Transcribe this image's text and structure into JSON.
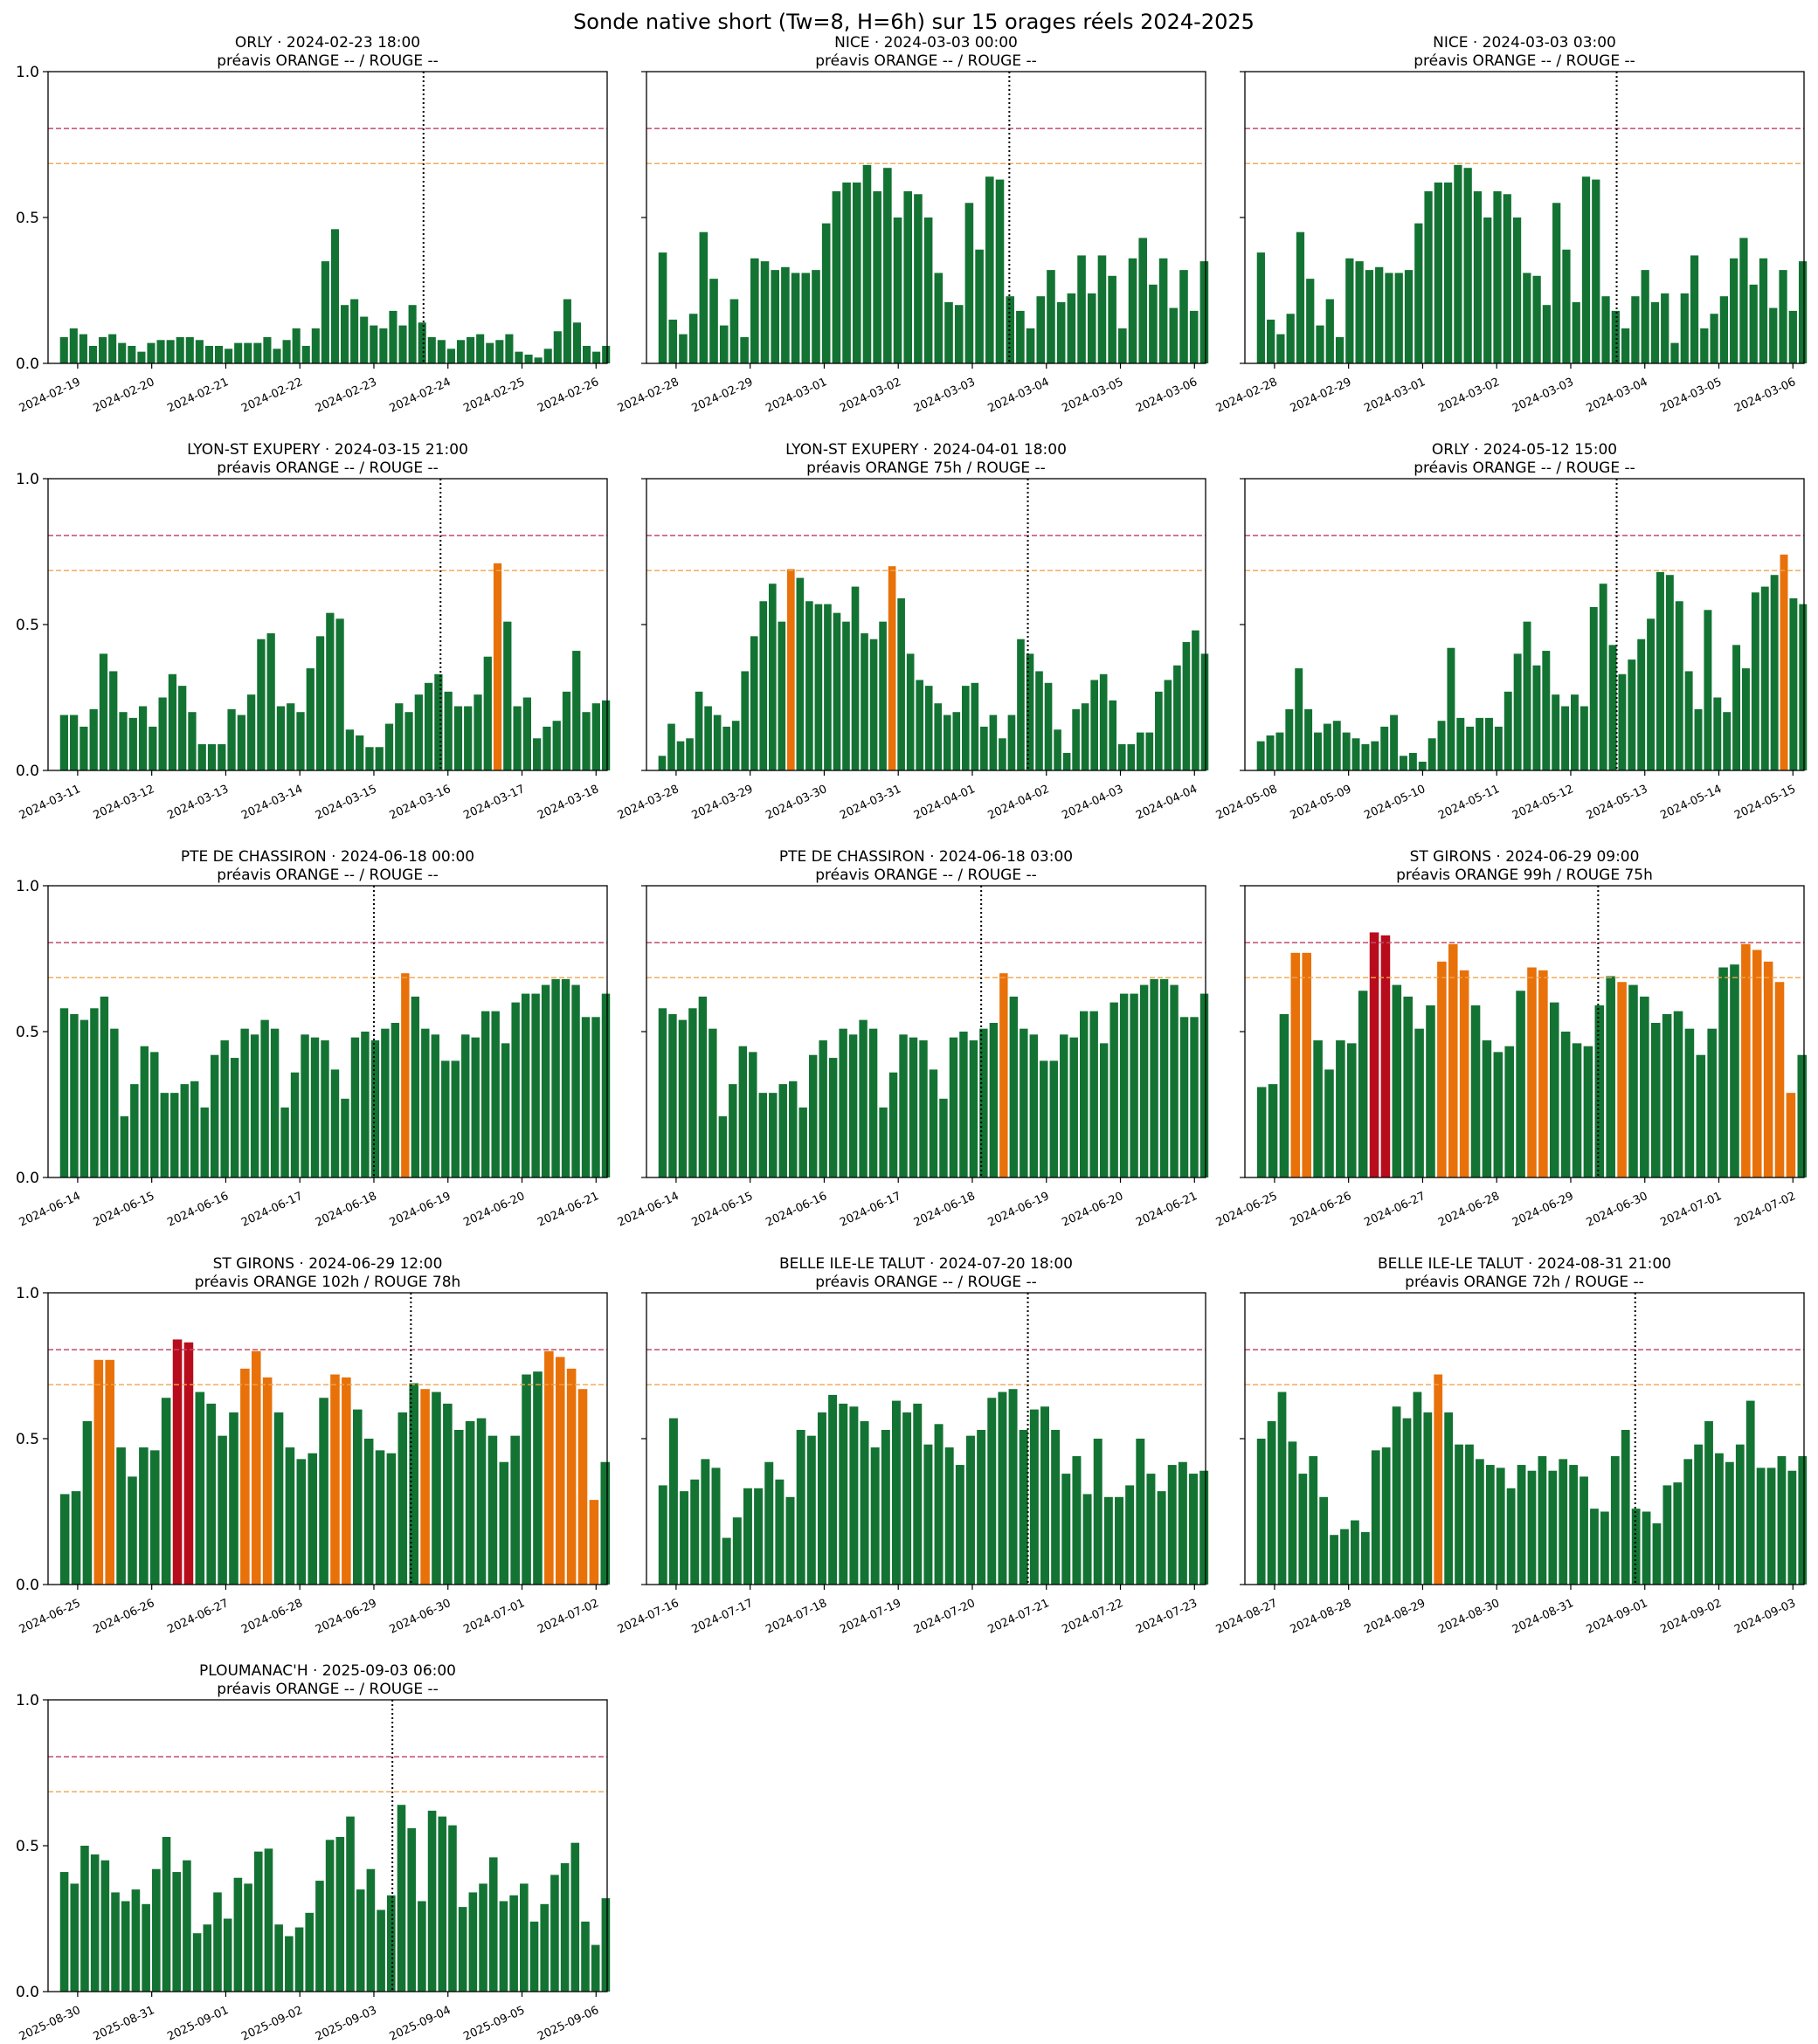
{
  "figure": {
    "title": "Sonde native short (Tw=8, H=6h) sur 15 orages réels 2024-2025",
    "colors": {
      "green": "#137333",
      "orange": "#e8710a",
      "red": "#b80c1c",
      "orange_line": "#f0a44b",
      "red_line": "#c24a6a",
      "frame": "#000000"
    },
    "y_ticks": [
      "0.0",
      "0.5",
      "1.0"
    ],
    "thresholds": {
      "orange": 0.685,
      "red": 0.805
    }
  },
  "chart_data": [
    {
      "type": "bar",
      "station": "ORLY",
      "title": "ORLY · 2024-02-23 18:00",
      "subtitle": "préavis ORANGE -- / ROUGE --",
      "xticks": [
        "2024-02-19",
        "2024-02-20",
        "2024-02-21",
        "2024-02-22",
        "2024-02-23",
        "2024-02-24",
        "2024-02-25",
        "2024-02-26"
      ],
      "ylim": [
        0,
        1
      ],
      "event_x": 4.67,
      "values": [
        0.09,
        0.12,
        0.1,
        0.06,
        0.09,
        0.1,
        0.07,
        0.06,
        0.04,
        0.07,
        0.08,
        0.08,
        0.09,
        0.09,
        0.08,
        0.06,
        0.06,
        0.05,
        0.07,
        0.07,
        0.07,
        0.09,
        0.05,
        0.08,
        0.12,
        0.06,
        0.12,
        0.35,
        0.46,
        0.2,
        0.22,
        0.16,
        0.13,
        0.12,
        0.18,
        0.13,
        0.2,
        0.14,
        0.09,
        0.08,
        0.05,
        0.08,
        0.09,
        0.1,
        0.07,
        0.08,
        0.1,
        0.04,
        0.03,
        0.02,
        0.05,
        0.11,
        0.22,
        0.14,
        0.06,
        0.04,
        0.06
      ],
      "levels": ""
    },
    {
      "type": "bar",
      "station": "NICE",
      "title": "NICE · 2024-03-03 00:00",
      "subtitle": "préavis ORANGE -- / ROUGE --",
      "xticks": [
        "2024-02-28",
        "2024-02-29",
        "2024-03-01",
        "2024-03-02",
        "2024-03-03",
        "2024-03-04",
        "2024-03-05",
        "2024-03-06"
      ],
      "ylim": [
        0,
        1
      ],
      "event_x": 4.5,
      "values": [
        0.38,
        0.15,
        0.1,
        0.17,
        0.45,
        0.29,
        0.13,
        0.22,
        0.09,
        0.36,
        0.35,
        0.32,
        0.33,
        0.31,
        0.31,
        0.32,
        0.48,
        0.59,
        0.62,
        0.62,
        0.68,
        0.59,
        0.67,
        0.5,
        0.59,
        0.58,
        0.5,
        0.31,
        0.21,
        0.2,
        0.55,
        0.39,
        0.64,
        0.63,
        0.23,
        0.18,
        0.12,
        0.23,
        0.32,
        0.21,
        0.24,
        0.37,
        0.24,
        0.37,
        0.3,
        0.12,
        0.36,
        0.43,
        0.27,
        0.36,
        0.19,
        0.32,
        0.18,
        0.35
      ],
      "levels": ""
    },
    {
      "type": "bar",
      "station": "NICE",
      "title": "NICE · 2024-03-03 03:00",
      "subtitle": "préavis ORANGE -- / ROUGE --",
      "xticks": [
        "2024-02-28",
        "2024-02-29",
        "2024-03-01",
        "2024-03-02",
        "2024-03-03",
        "2024-03-04",
        "2024-03-05",
        "2024-03-06"
      ],
      "ylim": [
        0,
        1
      ],
      "event_x": 4.62,
      "values": [
        0.38,
        0.15,
        0.1,
        0.17,
        0.45,
        0.29,
        0.13,
        0.22,
        0.09,
        0.36,
        0.35,
        0.32,
        0.33,
        0.31,
        0.31,
        0.32,
        0.48,
        0.59,
        0.62,
        0.62,
        0.68,
        0.67,
        0.59,
        0.5,
        0.59,
        0.58,
        0.5,
        0.31,
        0.3,
        0.2,
        0.55,
        0.39,
        0.21,
        0.64,
        0.63,
        0.23,
        0.18,
        0.12,
        0.23,
        0.32,
        0.21,
        0.24,
        0.07,
        0.24,
        0.37,
        0.12,
        0.17,
        0.23,
        0.36,
        0.43,
        0.27,
        0.36,
        0.19,
        0.32,
        0.18,
        0.35
      ],
      "levels": ""
    },
    {
      "type": "bar",
      "station": "LYON-ST EXUPERY",
      "title": "LYON-ST EXUPERY · 2024-03-15 21:00",
      "subtitle": "préavis ORANGE -- / ROUGE --",
      "xticks": [
        "2024-03-11",
        "2024-03-12",
        "2024-03-13",
        "2024-03-14",
        "2024-03-15",
        "2024-03-16",
        "2024-03-17",
        "2024-03-18"
      ],
      "ylim": [
        0,
        1
      ],
      "event_x": 4.9,
      "values": [
        0.19,
        0.19,
        0.15,
        0.21,
        0.4,
        0.34,
        0.2,
        0.18,
        0.22,
        0.15,
        0.25,
        0.33,
        0.29,
        0.2,
        0.09,
        0.09,
        0.09,
        0.21,
        0.19,
        0.26,
        0.45,
        0.47,
        0.22,
        0.23,
        0.2,
        0.35,
        0.46,
        0.54,
        0.52,
        0.14,
        0.12,
        0.08,
        0.08,
        0.16,
        0.23,
        0.2,
        0.26,
        0.3,
        0.33,
        0.27,
        0.22,
        0.22,
        0.26,
        0.39,
        0.71,
        0.51,
        0.22,
        0.25,
        0.11,
        0.15,
        0.17,
        0.27,
        0.41,
        0.2,
        0.23,
        0.24
      ],
      "levels": "00000000000000000000000000000000000000000000O00000000000"
    },
    {
      "type": "bar",
      "station": "LYON-ST EXUPERY",
      "title": "LYON-ST EXUPERY · 2024-04-01 18:00",
      "subtitle": "préavis ORANGE 75h / ROUGE --",
      "xticks": [
        "2024-03-28",
        "2024-03-29",
        "2024-03-30",
        "2024-03-31",
        "2024-04-01",
        "2024-04-02",
        "2024-04-03",
        "2024-04-04"
      ],
      "ylim": [
        0,
        1
      ],
      "event_x": 4.75,
      "values": [
        0.05,
        0.16,
        0.1,
        0.11,
        0.27,
        0.22,
        0.19,
        0.15,
        0.17,
        0.34,
        0.46,
        0.58,
        0.64,
        0.51,
        0.69,
        0.66,
        0.58,
        0.57,
        0.57,
        0.54,
        0.51,
        0.63,
        0.47,
        0.45,
        0.51,
        0.7,
        0.59,
        0.4,
        0.31,
        0.29,
        0.23,
        0.19,
        0.2,
        0.29,
        0.3,
        0.15,
        0.19,
        0.11,
        0.19,
        0.45,
        0.4,
        0.34,
        0.3,
        0.14,
        0.06,
        0.21,
        0.23,
        0.31,
        0.33,
        0.24,
        0.09,
        0.09,
        0.13,
        0.13,
        0.27,
        0.31,
        0.36,
        0.44,
        0.48,
        0.4
      ],
      "levels": "00000000000000O0000000000O0000000000000000000000000000000000"
    },
    {
      "type": "bar",
      "station": "ORLY",
      "title": "ORLY · 2024-05-12 15:00",
      "subtitle": "préavis ORANGE -- / ROUGE --",
      "xticks": [
        "2024-05-08",
        "2024-05-09",
        "2024-05-10",
        "2024-05-11",
        "2024-05-12",
        "2024-05-13",
        "2024-05-14",
        "2024-05-15"
      ],
      "ylim": [
        0,
        1
      ],
      "event_x": 4.62,
      "values": [
        0.1,
        0.12,
        0.13,
        0.21,
        0.35,
        0.21,
        0.13,
        0.16,
        0.17,
        0.13,
        0.11,
        0.09,
        0.1,
        0.15,
        0.19,
        0.05,
        0.06,
        0.03,
        0.11,
        0.17,
        0.42,
        0.18,
        0.15,
        0.18,
        0.18,
        0.15,
        0.27,
        0.4,
        0.51,
        0.36,
        0.41,
        0.26,
        0.22,
        0.26,
        0.22,
        0.56,
        0.64,
        0.43,
        0.33,
        0.38,
        0.45,
        0.52,
        0.68,
        0.67,
        0.58,
        0.34,
        0.21,
        0.55,
        0.25,
        0.2,
        0.43,
        0.35,
        0.61,
        0.63,
        0.67,
        0.74,
        0.59,
        0.57
      ],
      "levels": "0000000000000000000000000000000000000000000000000000000O00"
    },
    {
      "type": "bar",
      "station": "PTE DE CHASSIRON",
      "title": "PTE DE CHASSIRON · 2024-06-18 00:00",
      "subtitle": "préavis ORANGE -- / ROUGE --",
      "xticks": [
        "2024-06-14",
        "2024-06-15",
        "2024-06-16",
        "2024-06-17",
        "2024-06-18",
        "2024-06-19",
        "2024-06-20",
        "2024-06-21"
      ],
      "ylim": [
        0,
        1
      ],
      "event_x": 4.0,
      "values": [
        0.58,
        0.56,
        0.54,
        0.58,
        0.62,
        0.51,
        0.21,
        0.32,
        0.45,
        0.43,
        0.29,
        0.29,
        0.32,
        0.33,
        0.24,
        0.42,
        0.47,
        0.41,
        0.51,
        0.49,
        0.54,
        0.51,
        0.24,
        0.36,
        0.49,
        0.48,
        0.47,
        0.37,
        0.27,
        0.48,
        0.5,
        0.47,
        0.51,
        0.53,
        0.7,
        0.62,
        0.51,
        0.49,
        0.4,
        0.4,
        0.49,
        0.48,
        0.57,
        0.57,
        0.46,
        0.6,
        0.63,
        0.63,
        0.66,
        0.68,
        0.68,
        0.66,
        0.55,
        0.55,
        0.63
      ],
      "levels": "0000000000000000000000000000000000O00000000000000000000"
    },
    {
      "type": "bar",
      "station": "PTE DE CHASSIRON",
      "title": "PTE DE CHASSIRON · 2024-06-18 03:00",
      "subtitle": "préavis ORANGE -- / ROUGE --",
      "xticks": [
        "2024-06-14",
        "2024-06-15",
        "2024-06-16",
        "2024-06-17",
        "2024-06-18",
        "2024-06-19",
        "2024-06-20",
        "2024-06-21"
      ],
      "ylim": [
        0,
        1
      ],
      "event_x": 4.12,
      "values": [
        0.58,
        0.56,
        0.54,
        0.58,
        0.62,
        0.51,
        0.21,
        0.32,
        0.45,
        0.43,
        0.29,
        0.29,
        0.32,
        0.33,
        0.24,
        0.42,
        0.47,
        0.41,
        0.51,
        0.49,
        0.54,
        0.51,
        0.24,
        0.36,
        0.49,
        0.48,
        0.47,
        0.37,
        0.27,
        0.48,
        0.5,
        0.47,
        0.51,
        0.53,
        0.7,
        0.62,
        0.51,
        0.49,
        0.4,
        0.4,
        0.49,
        0.48,
        0.57,
        0.57,
        0.46,
        0.6,
        0.63,
        0.63,
        0.66,
        0.68,
        0.68,
        0.66,
        0.55,
        0.55,
        0.63
      ],
      "levels": "0000000000000000000000000000000000O00000000000000000000"
    },
    {
      "type": "bar",
      "station": "ST GIRONS",
      "title": "ST GIRONS · 2024-06-29 09:00",
      "subtitle": "préavis ORANGE 99h / ROUGE 75h",
      "xticks": [
        "2024-06-25",
        "2024-06-26",
        "2024-06-27",
        "2024-06-28",
        "2024-06-29",
        "2024-06-30",
        "2024-07-01",
        "2024-07-02"
      ],
      "ylim": [
        0,
        1
      ],
      "event_x": 4.37,
      "values": [
        0.31,
        0.32,
        0.56,
        0.77,
        0.77,
        0.47,
        0.37,
        0.47,
        0.46,
        0.64,
        0.84,
        0.83,
        0.66,
        0.62,
        0.51,
        0.59,
        0.74,
        0.8,
        0.71,
        0.59,
        0.47,
        0.43,
        0.45,
        0.64,
        0.72,
        0.71,
        0.6,
        0.5,
        0.46,
        0.45,
        0.59,
        0.69,
        0.67,
        0.66,
        0.62,
        0.53,
        0.56,
        0.57,
        0.51,
        0.42,
        0.51,
        0.72,
        0.73,
        0.8,
        0.78,
        0.74,
        0.67,
        0.29,
        0.42
      ],
      "levels": "000OO00000RR0000OOO00000OO000000O0000000000OOOOO000"
    },
    {
      "type": "bar",
      "station": "ST GIRONS",
      "title": "ST GIRONS · 2024-06-29 12:00",
      "subtitle": "préavis ORANGE 102h / ROUGE 78h",
      "xticks": [
        "2024-06-25",
        "2024-06-26",
        "2024-06-27",
        "2024-06-28",
        "2024-06-29",
        "2024-06-30",
        "2024-07-01",
        "2024-07-02"
      ],
      "ylim": [
        0,
        1
      ],
      "event_x": 4.5,
      "values": [
        0.31,
        0.32,
        0.56,
        0.77,
        0.77,
        0.47,
        0.37,
        0.47,
        0.46,
        0.64,
        0.84,
        0.83,
        0.66,
        0.62,
        0.51,
        0.59,
        0.74,
        0.8,
        0.71,
        0.59,
        0.47,
        0.43,
        0.45,
        0.64,
        0.72,
        0.71,
        0.6,
        0.5,
        0.46,
        0.45,
        0.59,
        0.69,
        0.67,
        0.66,
        0.62,
        0.53,
        0.56,
        0.57,
        0.51,
        0.42,
        0.51,
        0.72,
        0.73,
        0.8,
        0.78,
        0.74,
        0.67,
        0.29,
        0.42
      ],
      "levels": "000OO00000RR0000OOO00000OO000000O0000000000OOOOO000"
    },
    {
      "type": "bar",
      "station": "BELLE ILE-LE TALUT",
      "title": "BELLE ILE-LE TALUT · 2024-07-20 18:00",
      "subtitle": "préavis ORANGE -- / ROUGE --",
      "xticks": [
        "2024-07-16",
        "2024-07-17",
        "2024-07-18",
        "2024-07-19",
        "2024-07-20",
        "2024-07-21",
        "2024-07-22",
        "2024-07-23"
      ],
      "ylim": [
        0,
        1
      ],
      "event_x": 4.75,
      "values": [
        0.34,
        0.57,
        0.32,
        0.36,
        0.43,
        0.4,
        0.16,
        0.23,
        0.33,
        0.33,
        0.42,
        0.36,
        0.3,
        0.53,
        0.51,
        0.59,
        0.65,
        0.62,
        0.61,
        0.56,
        0.47,
        0.53,
        0.63,
        0.59,
        0.62,
        0.48,
        0.55,
        0.47,
        0.41,
        0.51,
        0.53,
        0.64,
        0.66,
        0.67,
        0.53,
        0.6,
        0.61,
        0.53,
        0.38,
        0.44,
        0.31,
        0.5,
        0.3,
        0.3,
        0.34,
        0.5,
        0.38,
        0.32,
        0.41,
        0.42,
        0.38,
        0.39
      ],
      "levels": ""
    },
    {
      "type": "bar",
      "station": "BELLE ILE-LE TALUT",
      "title": "BELLE ILE-LE TALUT · 2024-08-31 21:00",
      "subtitle": "préavis ORANGE 72h / ROUGE --",
      "xticks": [
        "2024-08-27",
        "2024-08-28",
        "2024-08-29",
        "2024-08-30",
        "2024-08-31",
        "2024-09-01",
        "2024-09-02",
        "2024-09-03"
      ],
      "ylim": [
        0,
        1
      ],
      "event_x": 4.87,
      "values": [
        0.5,
        0.56,
        0.66,
        0.49,
        0.38,
        0.44,
        0.3,
        0.17,
        0.19,
        0.22,
        0.18,
        0.46,
        0.47,
        0.61,
        0.57,
        0.66,
        0.59,
        0.72,
        0.59,
        0.48,
        0.48,
        0.43,
        0.41,
        0.4,
        0.33,
        0.41,
        0.39,
        0.44,
        0.39,
        0.43,
        0.41,
        0.37,
        0.26,
        0.25,
        0.44,
        0.53,
        0.26,
        0.25,
        0.21,
        0.34,
        0.35,
        0.43,
        0.48,
        0.56,
        0.45,
        0.42,
        0.48,
        0.63,
        0.4,
        0.4,
        0.44,
        0.39,
        0.44
      ],
      "levels": "00000000000000000O00000000000000000000000000000000000"
    },
    {
      "type": "bar",
      "station": "PLOUMANAC'H",
      "title": "PLOUMANAC'H · 2025-09-03 06:00",
      "subtitle": "préavis ORANGE -- / ROUGE --",
      "xticks": [
        "2025-08-30",
        "2025-08-31",
        "2025-09-01",
        "2025-09-02",
        "2025-09-03",
        "2025-09-04",
        "2025-09-05",
        "2025-09-06"
      ],
      "ylim": [
        0,
        1
      ],
      "event_x": 4.25,
      "values": [
        0.41,
        0.37,
        0.5,
        0.47,
        0.45,
        0.34,
        0.31,
        0.35,
        0.3,
        0.42,
        0.53,
        0.41,
        0.45,
        0.2,
        0.23,
        0.34,
        0.25,
        0.39,
        0.37,
        0.48,
        0.49,
        0.23,
        0.19,
        0.22,
        0.27,
        0.38,
        0.52,
        0.53,
        0.6,
        0.35,
        0.42,
        0.28,
        0.33,
        0.64,
        0.56,
        0.31,
        0.62,
        0.6,
        0.57,
        0.29,
        0.34,
        0.37,
        0.46,
        0.31,
        0.33,
        0.37,
        0.24,
        0.3,
        0.4,
        0.44,
        0.51,
        0.24,
        0.16,
        0.32
      ],
      "levels": ""
    }
  ]
}
